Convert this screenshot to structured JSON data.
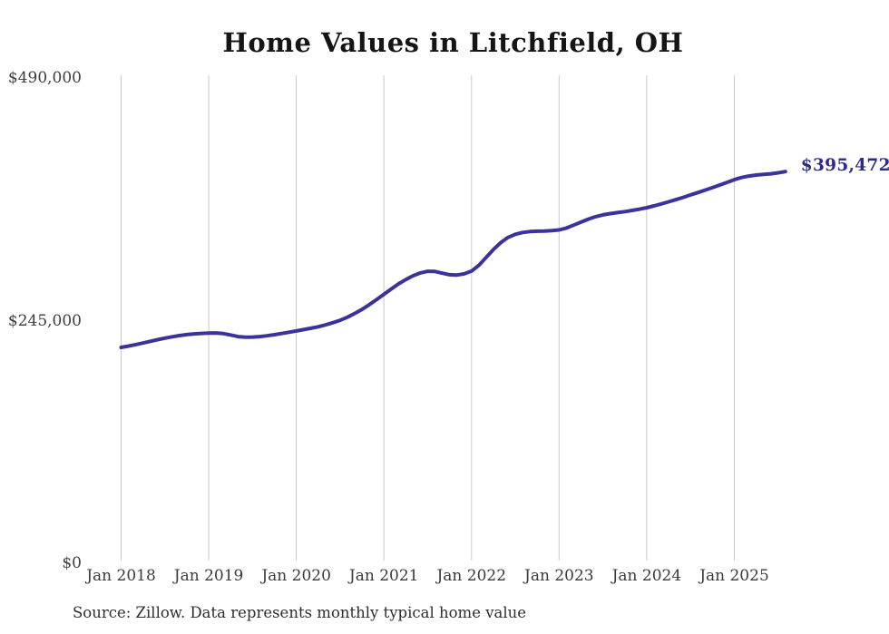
{
  "title": "Home Values in Litchfield, OH",
  "source_note": "Source: Zillow. Data represents monthly typical home value",
  "colors": {
    "line": "#3b339c",
    "end_label": "#2d2b8f",
    "gridline": "#c9c9c9",
    "title_text": "#151515",
    "axis_text": "#3a3a3a",
    "background": "#ffffff"
  },
  "chart_data": {
    "type": "line",
    "title": "Home Values in Litchfield, OH",
    "xlabel": "",
    "ylabel": "",
    "ylim": [
      0,
      490000
    ],
    "grid": "vertical-only",
    "legend": "none",
    "frequency": "monthly",
    "start_month": "2018-01",
    "end_month": "2025-08",
    "x_tick_labels": [
      "Jan 2018",
      "Jan 2019",
      "Jan 2020",
      "Jan 2021",
      "Jan 2022",
      "Jan 2023",
      "Jan 2024",
      "Jan 2025"
    ],
    "y_tick_labels": [
      "$0",
      "$245,000",
      "$490,000"
    ],
    "end_label": "$395,472",
    "final_value": 395472,
    "series": [
      {
        "name": "Monthly typical home value",
        "values": [
          218000,
          219300,
          220800,
          222400,
          224100,
          225800,
          227300,
          228700,
          229900,
          230900,
          231600,
          232100,
          232400,
          232500,
          231900,
          230500,
          228900,
          228200,
          228400,
          228900,
          229700,
          230800,
          232000,
          233300,
          234600,
          235900,
          237300,
          238800,
          240700,
          242900,
          245400,
          248500,
          252200,
          256400,
          261100,
          266300,
          271600,
          277000,
          282100,
          286500,
          290300,
          293200,
          294800,
          294600,
          292900,
          291300,
          291100,
          292300,
          295000,
          300800,
          308800,
          316800,
          323800,
          329000,
          332200,
          334000,
          334900,
          335300,
          335500,
          335900,
          336600,
          338500,
          341400,
          344500,
          347500,
          350000,
          351800,
          353100,
          354100,
          355100,
          356300,
          357600,
          359000,
          360900,
          362900,
          365000,
          367200,
          369500,
          371900,
          374300,
          376800,
          379300,
          381900,
          384600,
          387300,
          389500,
          391000,
          392000,
          392600,
          393300,
          394300,
          395472
        ]
      }
    ]
  }
}
